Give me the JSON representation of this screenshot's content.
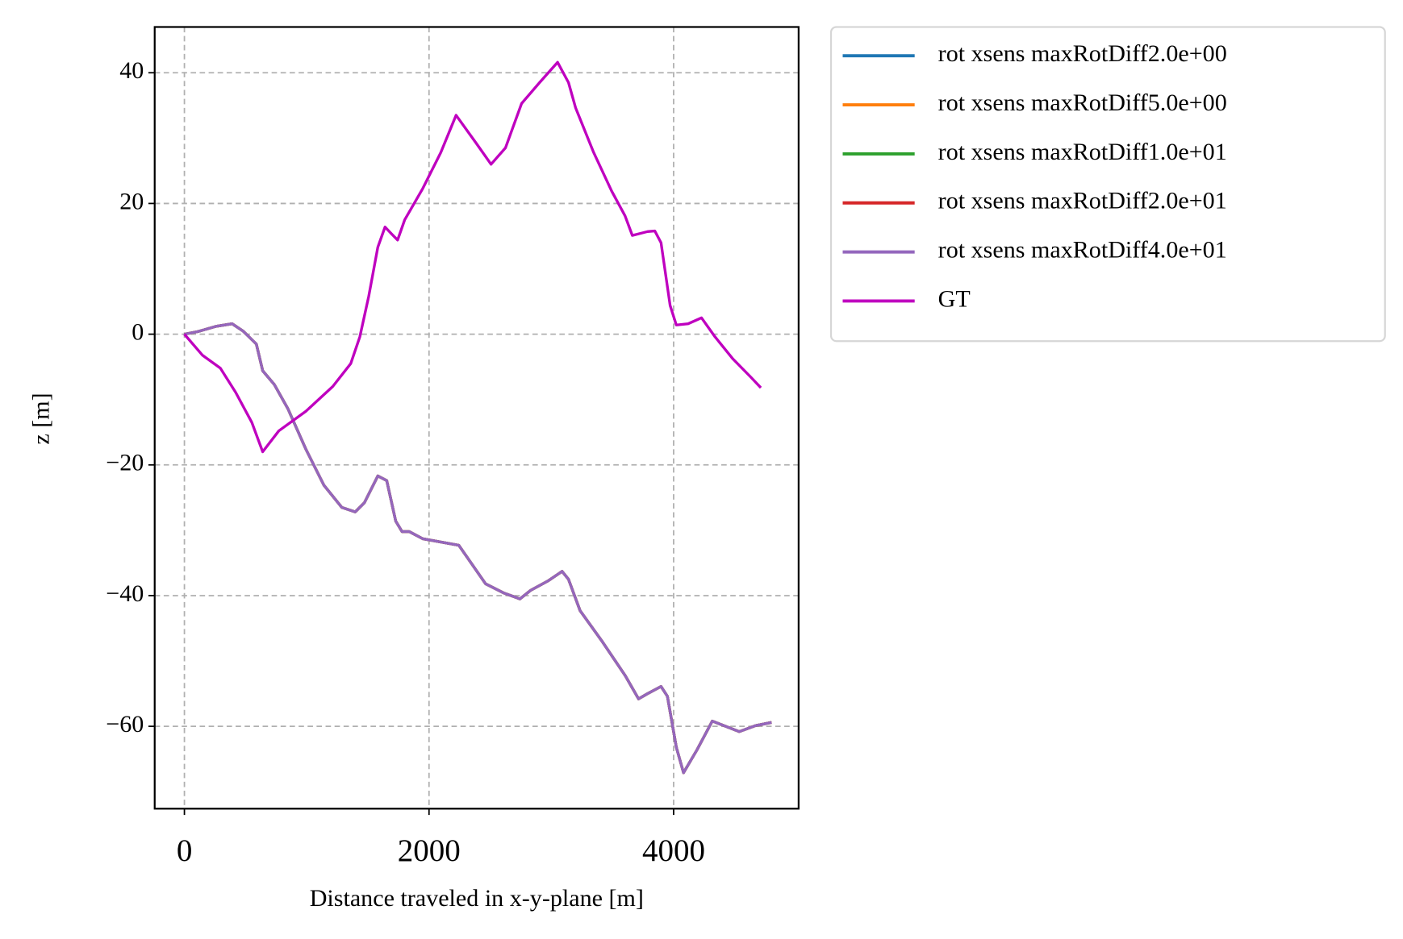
{
  "chart_data": {
    "type": "line",
    "x_label": "Distance traveled in x-y-plane [m]",
    "y_label": "z [m]",
    "xlim": [
      -243,
      5022
    ],
    "ylim": [
      -72.6,
      47.0
    ],
    "xticks": [
      0,
      2000,
      4000
    ],
    "yticks": [
      {
        "value": -60,
        "label": "−60"
      },
      {
        "value": -40,
        "label": "−40"
      },
      {
        "value": -20,
        "label": "−20"
      },
      0,
      20,
      40
    ],
    "grid": true,
    "legend": "outside upper right",
    "series": [
      {
        "name": "rot xsens maxRotDiff2.0e+00",
        "color": "#1f77b4",
        "x": [
          0,
          110,
          257,
          390,
          478,
          588,
          640,
          735,
          846,
          993,
          1140,
          1287,
          1397,
          1471,
          1581,
          1654,
          1728,
          1779,
          1838,
          1949,
          2243,
          2463,
          2610,
          2743,
          2831,
          2978,
          3088,
          3140,
          3235,
          3419,
          3603,
          3713,
          3787,
          3897,
          3949,
          4022,
          4081,
          4191,
          4316,
          4412,
          4537,
          4669,
          4801
        ],
        "values": [
          0,
          0.4,
          1.2,
          1.6,
          0.5,
          -1.5,
          -5.6,
          -7.7,
          -11.4,
          -17.6,
          -23.1,
          -26.5,
          -27.2,
          -25.8,
          -21.7,
          -22.4,
          -28.6,
          -30.2,
          -30.2,
          -31.3,
          -32.3,
          -38.2,
          -39.6,
          -40.5,
          -39.2,
          -37.7,
          -36.3,
          -37.5,
          -42.3,
          -47.1,
          -52.2,
          -55.8,
          -55.0,
          -53.9,
          -55.4,
          -63.2,
          -67.1,
          -63.6,
          -59.2,
          -59.9,
          -60.8,
          -59.9,
          -59.4
        ]
      },
      {
        "name": "rot xsens maxRotDiff5.0e+00",
        "color": "#ff7f0e",
        "x": [
          0,
          110,
          257,
          390,
          478,
          588,
          640,
          735,
          846,
          993,
          1140,
          1287,
          1397,
          1471,
          1581,
          1654,
          1728,
          1779,
          1838,
          1949,
          2243,
          2463,
          2610,
          2743,
          2831,
          2978,
          3088,
          3140,
          3235,
          3419,
          3603,
          3713,
          3787,
          3897,
          3949,
          4022,
          4081,
          4191,
          4316,
          4412,
          4537,
          4669,
          4801
        ],
        "values": [
          0,
          0.4,
          1.2,
          1.6,
          0.5,
          -1.5,
          -5.6,
          -7.7,
          -11.4,
          -17.6,
          -23.1,
          -26.5,
          -27.2,
          -25.8,
          -21.7,
          -22.4,
          -28.6,
          -30.2,
          -30.2,
          -31.3,
          -32.3,
          -38.2,
          -39.6,
          -40.5,
          -39.2,
          -37.7,
          -36.3,
          -37.5,
          -42.3,
          -47.1,
          -52.2,
          -55.8,
          -55.0,
          -53.9,
          -55.4,
          -63.2,
          -67.1,
          -63.6,
          -59.2,
          -59.9,
          -60.8,
          -59.9,
          -59.4
        ]
      },
      {
        "name": "rot xsens maxRotDiff1.0e+01",
        "color": "#2ca02c",
        "x": [
          0,
          110,
          257,
          390,
          478,
          588,
          640,
          735,
          846,
          993,
          1140,
          1287,
          1397,
          1471,
          1581,
          1654,
          1728,
          1779,
          1838,
          1949,
          2243,
          2463,
          2610,
          2743,
          2831,
          2978,
          3088,
          3140,
          3235,
          3419,
          3603,
          3713,
          3787,
          3897,
          3949,
          4022,
          4081,
          4191,
          4316,
          4412,
          4537,
          4669,
          4801
        ],
        "values": [
          0,
          0.4,
          1.2,
          1.6,
          0.5,
          -1.5,
          -5.6,
          -7.7,
          -11.4,
          -17.6,
          -23.1,
          -26.5,
          -27.2,
          -25.8,
          -21.7,
          -22.4,
          -28.6,
          -30.2,
          -30.2,
          -31.3,
          -32.3,
          -38.2,
          -39.6,
          -40.5,
          -39.2,
          -37.7,
          -36.3,
          -37.5,
          -42.3,
          -47.1,
          -52.2,
          -55.8,
          -55.0,
          -53.9,
          -55.4,
          -63.2,
          -67.1,
          -63.6,
          -59.2,
          -59.9,
          -60.8,
          -59.9,
          -59.4
        ]
      },
      {
        "name": "rot xsens maxRotDiff2.0e+01",
        "color": "#d62728",
        "x": [
          0,
          110,
          257,
          390,
          478,
          588,
          640,
          735,
          846,
          993,
          1140,
          1287,
          1397,
          1471,
          1581,
          1654,
          1728,
          1779,
          1838,
          1949,
          2243,
          2463,
          2610,
          2743,
          2831,
          2978,
          3088,
          3140,
          3235,
          3419,
          3603,
          3713,
          3787,
          3897,
          3949,
          4022,
          4081,
          4191,
          4316,
          4412,
          4537,
          4669,
          4801
        ],
        "values": [
          0,
          0.4,
          1.2,
          1.6,
          0.5,
          -1.5,
          -5.6,
          -7.7,
          -11.4,
          -17.6,
          -23.1,
          -26.5,
          -27.2,
          -25.8,
          -21.7,
          -22.4,
          -28.6,
          -30.2,
          -30.2,
          -31.3,
          -32.3,
          -38.2,
          -39.6,
          -40.5,
          -39.2,
          -37.7,
          -36.3,
          -37.5,
          -42.3,
          -47.1,
          -52.2,
          -55.8,
          -55.0,
          -53.9,
          -55.4,
          -63.2,
          -67.1,
          -63.6,
          -59.2,
          -59.9,
          -60.8,
          -59.9,
          -59.4
        ]
      },
      {
        "name": "rot xsens maxRotDiff4.0e+01",
        "color": "#9467bd",
        "x": [
          0,
          110,
          257,
          390,
          478,
          588,
          640,
          735,
          846,
          993,
          1140,
          1287,
          1397,
          1471,
          1581,
          1654,
          1728,
          1779,
          1838,
          1949,
          2243,
          2463,
          2610,
          2743,
          2831,
          2978,
          3088,
          3140,
          3235,
          3419,
          3603,
          3713,
          3787,
          3897,
          3949,
          4022,
          4081,
          4191,
          4316,
          4412,
          4537,
          4669,
          4801
        ],
        "values": [
          0,
          0.4,
          1.2,
          1.6,
          0.5,
          -1.5,
          -5.6,
          -7.7,
          -11.4,
          -17.6,
          -23.1,
          -26.5,
          -27.2,
          -25.8,
          -21.7,
          -22.4,
          -28.6,
          -30.2,
          -30.2,
          -31.3,
          -32.3,
          -38.2,
          -39.6,
          -40.5,
          -39.2,
          -37.7,
          -36.3,
          -37.5,
          -42.3,
          -47.1,
          -52.2,
          -55.8,
          -55.0,
          -53.9,
          -55.4,
          -63.2,
          -67.1,
          -63.6,
          -59.2,
          -59.9,
          -60.8,
          -59.9,
          -59.4
        ]
      },
      {
        "name": "GT",
        "color": "#bf00bf",
        "x": [
          0,
          147,
          294,
          419,
          551,
          640,
          772,
          993,
          1213,
          1360,
          1434,
          1507,
          1581,
          1640,
          1691,
          1743,
          1801,
          1949,
          2096,
          2221,
          2390,
          2507,
          2625,
          2757,
          2904,
          3051,
          3140,
          3199,
          3346,
          3493,
          3603,
          3662,
          3787,
          3846,
          3897,
          3971,
          4022,
          4118,
          4228,
          4338,
          4485,
          4632,
          4713
        ],
        "values": [
          0,
          -3.2,
          -5.2,
          -8.9,
          -13.5,
          -18.0,
          -14.8,
          -11.8,
          -8.0,
          -4.5,
          -0.4,
          5.8,
          13.3,
          16.4,
          15.4,
          14.4,
          17.5,
          22.3,
          27.8,
          33.5,
          29.1,
          26.0,
          28.5,
          35.3,
          38.5,
          41.6,
          38.5,
          34.6,
          27.8,
          21.9,
          18.1,
          15.1,
          15.7,
          15.8,
          14.0,
          4.4,
          1.4,
          1.6,
          2.5,
          -0.4,
          -3.8,
          -6.6,
          -8.2
        ]
      }
    ]
  }
}
